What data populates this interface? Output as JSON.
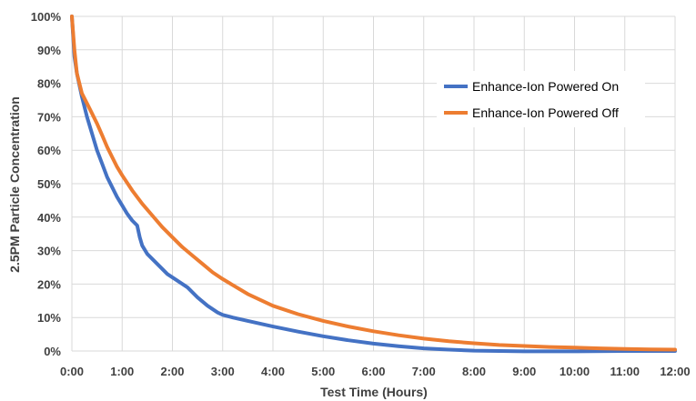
{
  "chart_data": {
    "type": "line",
    "title": "",
    "xlabel": "Test Time (Hours)",
    "ylabel": "2.5PM Particle Concentration",
    "x_tick_labels": [
      "0:00",
      "1:00",
      "2:00",
      "3:00",
      "4:00",
      "5:00",
      "6:00",
      "7:00",
      "8:00",
      "9:00",
      "10:00",
      "11:00",
      "12:00"
    ],
    "y_tick_labels": [
      "0%",
      "10%",
      "20%",
      "30%",
      "40%",
      "50%",
      "60%",
      "70%",
      "80%",
      "90%",
      "100%"
    ],
    "xlim": [
      0,
      12
    ],
    "ylim": [
      0,
      100
    ],
    "x_unit": "hours",
    "y_unit": "percent",
    "grid": true,
    "legend_position": "top-right",
    "series": [
      {
        "name": "Enhance-Ion Powered On",
        "color": "#4472C4",
        "points": [
          [
            0,
            100
          ],
          [
            0.05,
            88
          ],
          [
            0.1,
            83
          ],
          [
            0.2,
            76
          ],
          [
            0.3,
            70
          ],
          [
            0.4,
            65
          ],
          [
            0.5,
            60
          ],
          [
            0.6,
            56
          ],
          [
            0.7,
            52
          ],
          [
            0.8,
            49
          ],
          [
            0.9,
            46
          ],
          [
            1.0,
            43.5
          ],
          [
            1.1,
            41
          ],
          [
            1.2,
            39
          ],
          [
            1.3,
            37.5
          ],
          [
            1.35,
            34
          ],
          [
            1.4,
            31.5
          ],
          [
            1.5,
            29
          ],
          [
            1.7,
            26
          ],
          [
            1.9,
            23
          ],
          [
            2.1,
            21
          ],
          [
            2.3,
            19
          ],
          [
            2.5,
            16
          ],
          [
            2.7,
            13.5
          ],
          [
            2.9,
            11.5
          ],
          [
            3.0,
            10.8
          ],
          [
            3.2,
            10
          ],
          [
            3.5,
            9
          ],
          [
            4.0,
            7.3
          ],
          [
            4.5,
            5.8
          ],
          [
            5.0,
            4.4
          ],
          [
            5.5,
            3.2
          ],
          [
            6.0,
            2.2
          ],
          [
            6.5,
            1.4
          ],
          [
            7.0,
            0.8
          ],
          [
            7.5,
            0.4
          ],
          [
            8.0,
            0.1
          ],
          [
            9.0,
            -0.1
          ],
          [
            10.0,
            -0.1
          ],
          [
            11.0,
            0
          ],
          [
            12.0,
            0
          ]
        ]
      },
      {
        "name": "Enhance-Ion Powered Off",
        "color": "#ED7D31",
        "points": [
          [
            0,
            100
          ],
          [
            0.05,
            90
          ],
          [
            0.1,
            83
          ],
          [
            0.2,
            77
          ],
          [
            0.3,
            74
          ],
          [
            0.4,
            71
          ],
          [
            0.5,
            68
          ],
          [
            0.6,
            64.5
          ],
          [
            0.7,
            61
          ],
          [
            0.8,
            58
          ],
          [
            0.9,
            55
          ],
          [
            1.0,
            52.5
          ],
          [
            1.2,
            48
          ],
          [
            1.4,
            44
          ],
          [
            1.6,
            40.5
          ],
          [
            1.8,
            37
          ],
          [
            2.0,
            34
          ],
          [
            2.2,
            31
          ],
          [
            2.4,
            28.5
          ],
          [
            2.6,
            26
          ],
          [
            2.8,
            23.5
          ],
          [
            3.0,
            21.5
          ],
          [
            3.5,
            17
          ],
          [
            4.0,
            13.5
          ],
          [
            4.5,
            11
          ],
          [
            5.0,
            9
          ],
          [
            5.5,
            7.3
          ],
          [
            6.0,
            5.9
          ],
          [
            6.5,
            4.7
          ],
          [
            7.0,
            3.7
          ],
          [
            7.5,
            2.9
          ],
          [
            8.0,
            2.3
          ],
          [
            8.5,
            1.8
          ],
          [
            9.0,
            1.5
          ],
          [
            9.5,
            1.2
          ],
          [
            10.0,
            1
          ],
          [
            10.5,
            0.8
          ],
          [
            11.0,
            0.6
          ],
          [
            11.5,
            0.5
          ],
          [
            12.0,
            0.4
          ]
        ]
      }
    ]
  }
}
